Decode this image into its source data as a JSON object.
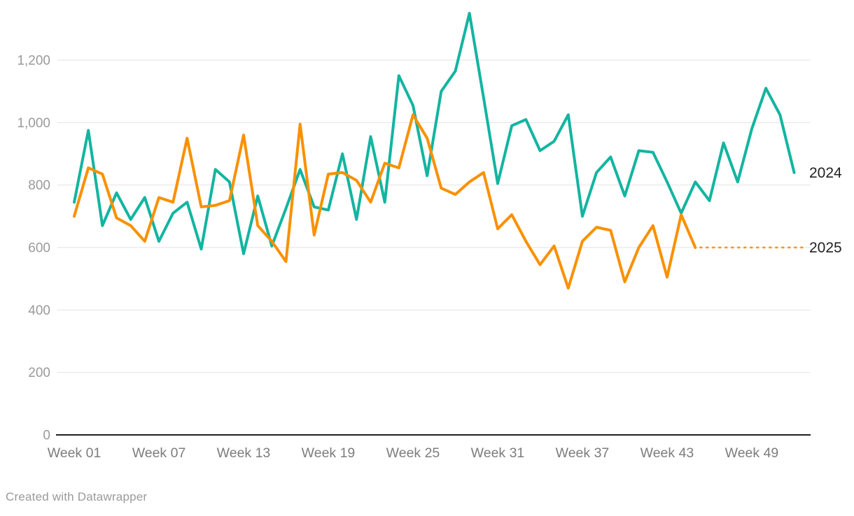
{
  "chart_data": {
    "type": "line",
    "title": "",
    "xlabel": "",
    "ylabel": "",
    "x_unit": "week of year",
    "x_tick_weeks": [
      1,
      7,
      13,
      19,
      25,
      31,
      37,
      43,
      49
    ],
    "x_tick_labels": [
      "Week 01",
      "Week 07",
      "Week 13",
      "Week 19",
      "Week 25",
      "Week 31",
      "Week 37",
      "Week 43",
      "Week 49"
    ],
    "y_ticks": [
      0,
      200,
      400,
      600,
      800,
      1000,
      1200
    ],
    "y_tick_labels": [
      "0",
      "200",
      "400",
      "600",
      "800",
      "1,000",
      "1,200"
    ],
    "ylim": [
      0,
      1380
    ],
    "xlim_weeks": [
      1,
      53
    ],
    "grid": "horizontal",
    "legend_position": "direct-labels-right",
    "series": [
      {
        "name": "2024",
        "color": "#12B5A0",
        "start_week": 1,
        "values": [
          745,
          975,
          670,
          775,
          690,
          760,
          620,
          710,
          745,
          595,
          850,
          810,
          580,
          765,
          605,
          725,
          850,
          730,
          720,
          900,
          690,
          955,
          745,
          1150,
          1055,
          830,
          1100,
          1165,
          1350,
          1080,
          805,
          990,
          1010,
          910,
          940,
          1025,
          700,
          840,
          890,
          765,
          910,
          905,
          810,
          710,
          810,
          750,
          935,
          810,
          980,
          1110,
          1025,
          840
        ]
      },
      {
        "name": "2025",
        "color": "#FA9000",
        "start_week": 1,
        "values": [
          700,
          855,
          835,
          695,
          670,
          620,
          760,
          745,
          950,
          730,
          735,
          750,
          960,
          670,
          620,
          555,
          995,
          640,
          835,
          840,
          815,
          745,
          870,
          855,
          1025,
          950,
          790,
          770,
          810,
          840,
          660,
          705,
          620,
          545,
          605,
          470,
          620,
          665,
          655,
          490,
          600,
          670,
          505,
          705,
          600
        ],
        "projection": {
          "style": "dotted",
          "value": 600,
          "from_week": 45,
          "note": "dotted flat extension to label"
        }
      }
    ]
  },
  "footer": {
    "credit": "Created with Datawrapper"
  },
  "colors": {
    "series_2024": "#12B5A0",
    "series_2025": "#FA9000",
    "gridline": "#e2e2e2",
    "axis_line": "#1f1f1f",
    "y_tick_text": "#9a9a9a",
    "x_tick_text": "#7d7d7d",
    "series_label_text": "#222222",
    "credit_text": "#9a9a9a"
  }
}
